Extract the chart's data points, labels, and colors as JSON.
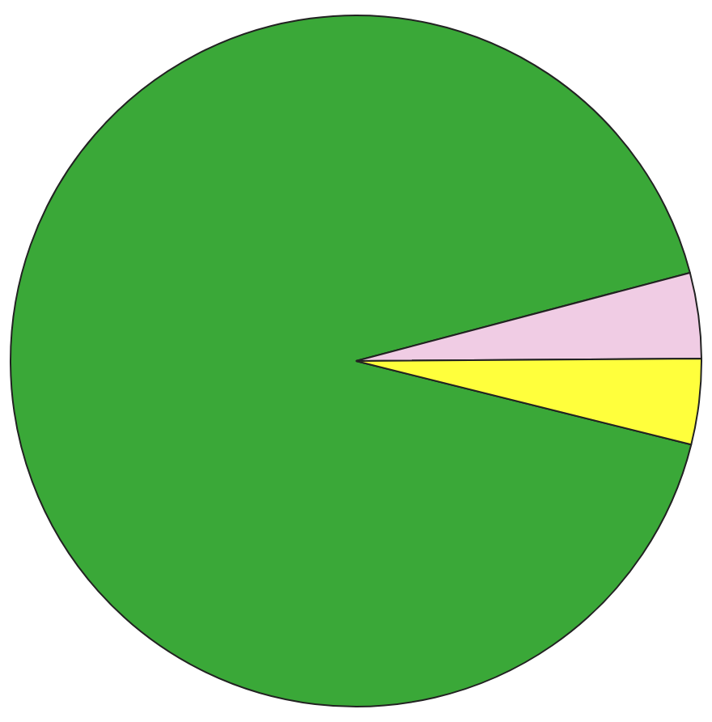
{
  "chart_data": {
    "type": "pie",
    "categories": [
      null,
      null,
      null
    ],
    "values": [
      92,
      4,
      4
    ],
    "colors": [
      "#3aa838",
      "#f0cce4",
      "#ffff3c"
    ],
    "legend": false
  }
}
